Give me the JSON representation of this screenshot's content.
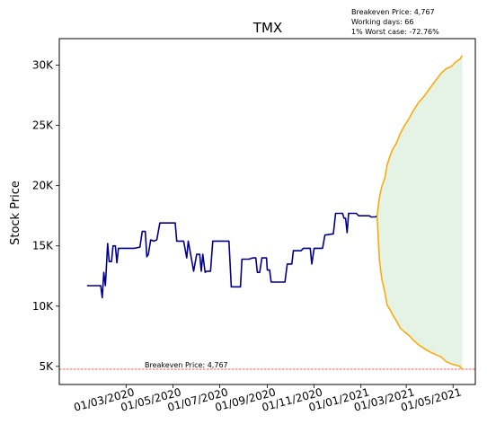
{
  "chart_data": {
    "type": "line",
    "title": "TMX",
    "xlabel": "",
    "ylabel": "Stock Price",
    "annotations": [
      "Breakeven Price: 4,767",
      "Working days: 66",
      "1% Worst case: -72.76%"
    ],
    "breakeven": {
      "label": "Breakeven Price: 4,767",
      "value": 4767
    },
    "ylim": [
      3500,
      32200
    ],
    "xlim": [
      "2019-12-05",
      "2021-05-30"
    ],
    "x_ticks": [
      {
        "date": "2020-03-01",
        "label": "01/03/2020"
      },
      {
        "date": "2020-05-01",
        "label": "01/05/2020"
      },
      {
        "date": "2020-07-01",
        "label": "01/07/2020"
      },
      {
        "date": "2020-09-01",
        "label": "01/09/2020"
      },
      {
        "date": "2020-11-01",
        "label": "01/11/2020"
      },
      {
        "date": "2021-01-01",
        "label": "01/01/2021"
      },
      {
        "date": "2021-03-01",
        "label": "01/03/2021"
      },
      {
        "date": "2021-05-01",
        "label": "01/05/2021"
      }
    ],
    "y_ticks": [
      {
        "value": 5000,
        "label": "5K"
      },
      {
        "value": 10000,
        "label": "10K"
      },
      {
        "value": 15000,
        "label": "15K"
      },
      {
        "value": 20000,
        "label": "20K"
      },
      {
        "value": 25000,
        "label": "25K"
      },
      {
        "value": 30000,
        "label": "30K"
      }
    ],
    "series": [
      {
        "color": "#00008b",
        "points": [
          [
            "2020-01-10",
            11700
          ],
          [
            "2020-01-20",
            11700
          ],
          [
            "2020-01-28",
            11700
          ],
          [
            "2020-01-30",
            10700
          ],
          [
            "2020-02-01",
            12800
          ],
          [
            "2020-02-03",
            11700
          ],
          [
            "2020-02-06",
            15200
          ],
          [
            "2020-02-08",
            13700
          ],
          [
            "2020-02-11",
            13700
          ],
          [
            "2020-02-13",
            15000
          ],
          [
            "2020-02-16",
            15000
          ],
          [
            "2020-02-18",
            13600
          ],
          [
            "2020-02-20",
            14800
          ],
          [
            "2020-03-01",
            14800
          ],
          [
            "2020-03-12",
            14800
          ],
          [
            "2020-03-19",
            14900
          ],
          [
            "2020-03-22",
            16200
          ],
          [
            "2020-03-26",
            16200
          ],
          [
            "2020-03-28",
            14100
          ],
          [
            "2020-03-30",
            14300
          ],
          [
            "2020-04-02",
            15500
          ],
          [
            "2020-04-06",
            15400
          ],
          [
            "2020-04-10",
            15500
          ],
          [
            "2020-04-14",
            16900
          ],
          [
            "2020-04-22",
            16900
          ],
          [
            "2020-05-04",
            16900
          ],
          [
            "2020-05-06",
            15400
          ],
          [
            "2020-05-15",
            15400
          ],
          [
            "2020-05-19",
            14000
          ],
          [
            "2020-05-21",
            15400
          ],
          [
            "2020-05-25",
            14000
          ],
          [
            "2020-05-28",
            12900
          ],
          [
            "2020-06-01",
            14300
          ],
          [
            "2020-06-05",
            14300
          ],
          [
            "2020-06-07",
            12900
          ],
          [
            "2020-06-09",
            14300
          ],
          [
            "2020-06-12",
            12800
          ],
          [
            "2020-06-14",
            12900
          ],
          [
            "2020-06-19",
            12900
          ],
          [
            "2020-06-22",
            15400
          ],
          [
            "2020-07-03",
            15400
          ],
          [
            "2020-07-13",
            15400
          ],
          [
            "2020-07-16",
            11600
          ],
          [
            "2020-07-24",
            11600
          ],
          [
            "2020-07-28",
            11600
          ],
          [
            "2020-07-30",
            13900
          ],
          [
            "2020-08-08",
            13900
          ],
          [
            "2020-08-13",
            14000
          ],
          [
            "2020-08-17",
            14000
          ],
          [
            "2020-08-19",
            12800
          ],
          [
            "2020-08-22",
            12800
          ],
          [
            "2020-08-25",
            14000
          ],
          [
            "2020-08-31",
            14000
          ],
          [
            "2020-09-01",
            13000
          ],
          [
            "2020-09-04",
            13000
          ],
          [
            "2020-09-06",
            12000
          ],
          [
            "2020-09-15",
            12000
          ],
          [
            "2020-09-24",
            12000
          ],
          [
            "2020-09-27",
            13500
          ],
          [
            "2020-10-03",
            13500
          ],
          [
            "2020-10-05",
            14600
          ],
          [
            "2020-10-15",
            14600
          ],
          [
            "2020-10-18",
            14800
          ],
          [
            "2020-10-27",
            14800
          ],
          [
            "2020-10-29",
            13500
          ],
          [
            "2020-11-01",
            14800
          ],
          [
            "2020-11-04",
            14800
          ],
          [
            "2020-11-08",
            14800
          ],
          [
            "2020-11-12",
            14800
          ],
          [
            "2020-11-15",
            15900
          ],
          [
            "2020-11-26",
            16000
          ],
          [
            "2020-11-29",
            17700
          ],
          [
            "2020-12-08",
            17700
          ],
          [
            "2020-12-10",
            17300
          ],
          [
            "2020-12-12",
            17300
          ],
          [
            "2020-12-14",
            16100
          ],
          [
            "2020-12-16",
            17700
          ],
          [
            "2020-12-26",
            17700
          ],
          [
            "2020-12-29",
            17500
          ],
          [
            "2021-01-03",
            17500
          ],
          [
            "2021-01-10",
            17500
          ],
          [
            "2021-01-12",
            17500
          ],
          [
            "2021-01-14",
            17400
          ],
          [
            "2021-01-20",
            17400
          ],
          [
            "2021-01-22",
            17500
          ]
        ]
      },
      {
        "color": "#ffa500",
        "points": [
          [
            "2021-01-22",
            17500
          ],
          [
            "2021-01-25",
            19000
          ],
          [
            "2021-01-28",
            19900
          ],
          [
            "2021-02-01",
            20600
          ],
          [
            "2021-02-04",
            21700
          ],
          [
            "2021-02-08",
            22500
          ],
          [
            "2021-02-12",
            23100
          ],
          [
            "2021-02-16",
            23500
          ],
          [
            "2021-02-21",
            24300
          ],
          [
            "2021-02-26",
            24900
          ],
          [
            "2021-03-04",
            25500
          ],
          [
            "2021-03-10",
            26200
          ],
          [
            "2021-03-17",
            26900
          ],
          [
            "2021-03-24",
            27400
          ],
          [
            "2021-04-01",
            28100
          ],
          [
            "2021-04-08",
            28700
          ],
          [
            "2021-04-15",
            29300
          ],
          [
            "2021-04-22",
            29700
          ],
          [
            "2021-04-29",
            29900
          ],
          [
            "2021-05-05",
            30300
          ],
          [
            "2021-05-10",
            30500
          ],
          [
            "2021-05-13",
            30800
          ]
        ]
      },
      {
        "color": "#ffa500",
        "points": [
          [
            "2021-01-22",
            17500
          ],
          [
            "2021-01-25",
            13900
          ],
          [
            "2021-01-28",
            12300
          ],
          [
            "2021-02-01",
            11200
          ],
          [
            "2021-02-04",
            10100
          ],
          [
            "2021-02-08",
            9700
          ],
          [
            "2021-02-12",
            9200
          ],
          [
            "2021-02-16",
            8800
          ],
          [
            "2021-02-21",
            8200
          ],
          [
            "2021-02-26",
            7900
          ],
          [
            "2021-03-04",
            7600
          ],
          [
            "2021-03-10",
            7200
          ],
          [
            "2021-03-17",
            6800
          ],
          [
            "2021-03-24",
            6500
          ],
          [
            "2021-04-01",
            6200
          ],
          [
            "2021-04-08",
            6000
          ],
          [
            "2021-04-15",
            5800
          ],
          [
            "2021-04-22",
            5400
          ],
          [
            "2021-04-29",
            5200
          ],
          [
            "2021-05-05",
            5100
          ],
          [
            "2021-05-10",
            5000
          ],
          [
            "2021-05-13",
            4767
          ]
        ]
      }
    ]
  }
}
